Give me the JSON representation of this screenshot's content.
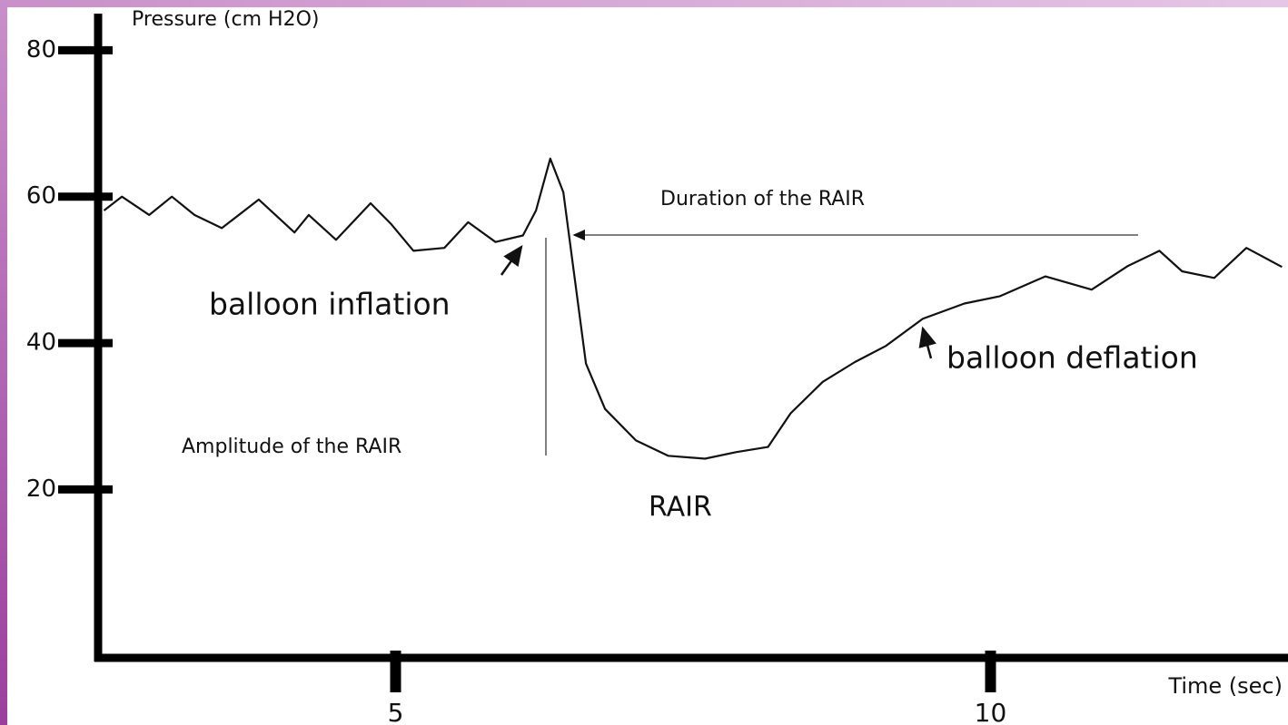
{
  "chart_data": {
    "type": "line",
    "ylabel": "Pressure (cm H2O)",
    "xlabel": "Time (sec)",
    "xlim": [
      2.5,
      12.5
    ],
    "xticks": [
      5,
      10
    ],
    "ylim": [
      -3,
      85
    ],
    "yticks": [
      20,
      40,
      60,
      80
    ],
    "color": "#111111",
    "x": [
      2.55,
      2.7,
      2.93,
      3.12,
      3.31,
      3.54,
      3.85,
      4.15,
      4.27,
      4.5,
      4.79,
      4.96,
      5.15,
      5.41,
      5.61,
      5.84,
      6.07,
      6.18,
      6.3,
      6.41,
      6.5,
      6.6,
      6.76,
      7.02,
      7.29,
      7.6,
      7.86,
      8.13,
      8.32,
      8.59,
      8.86,
      9.12,
      9.43,
      9.78,
      10.08,
      10.46,
      10.85,
      11.15,
      11.42,
      11.61,
      11.88,
      12.15,
      12.45
    ],
    "values": [
      58.1,
      60,
      57.5,
      60,
      57.5,
      55.7,
      59.6,
      55.1,
      57.5,
      54.1,
      59.1,
      56.3,
      52.6,
      53,
      56.5,
      53.8,
      54.7,
      58.1,
      65.2,
      60.6,
      49.5,
      37.2,
      31,
      26.7,
      24.6,
      24.2,
      25.1,
      25.8,
      30.4,
      34.7,
      37.4,
      39.6,
      43.3,
      45.4,
      46.4,
      49.1,
      47.3,
      50.5,
      52.6,
      49.8,
      48.9,
      53,
      50.4
    ],
    "annotations": [
      "Duration of the RAIR",
      "balloon inflation",
      "balloon deflation",
      "Amplitude of the RAIR",
      "RAIR"
    ]
  }
}
